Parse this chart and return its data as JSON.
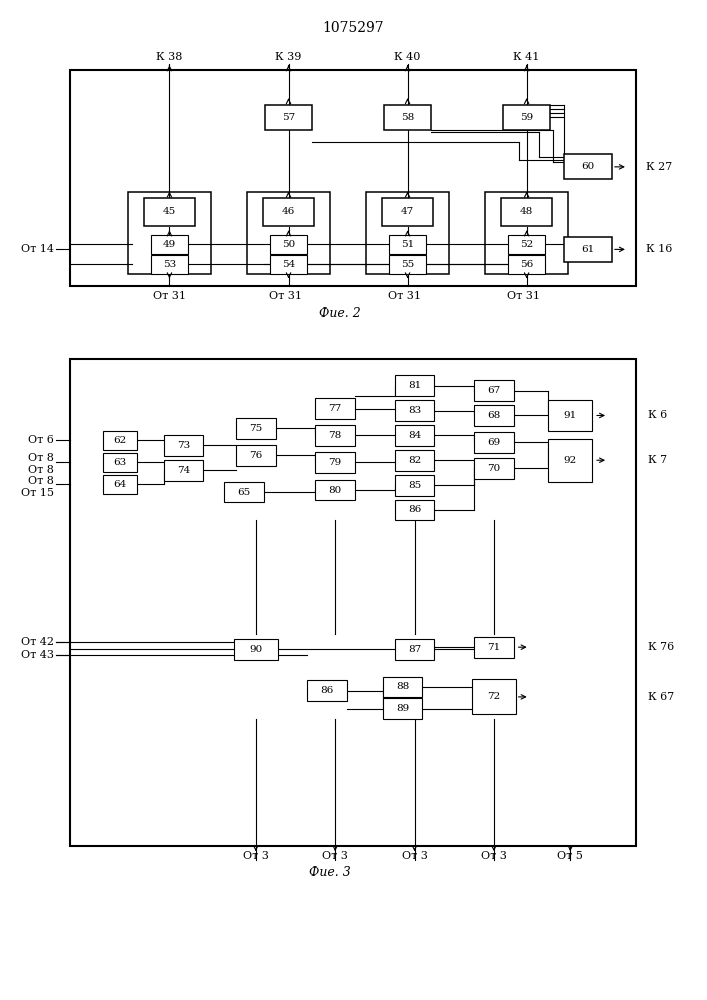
{
  "title": "1075297",
  "fig2_caption": "Фие. 2",
  "fig3_caption": "Фие. 3",
  "bg": "#ffffff",
  "lc": "#000000"
}
